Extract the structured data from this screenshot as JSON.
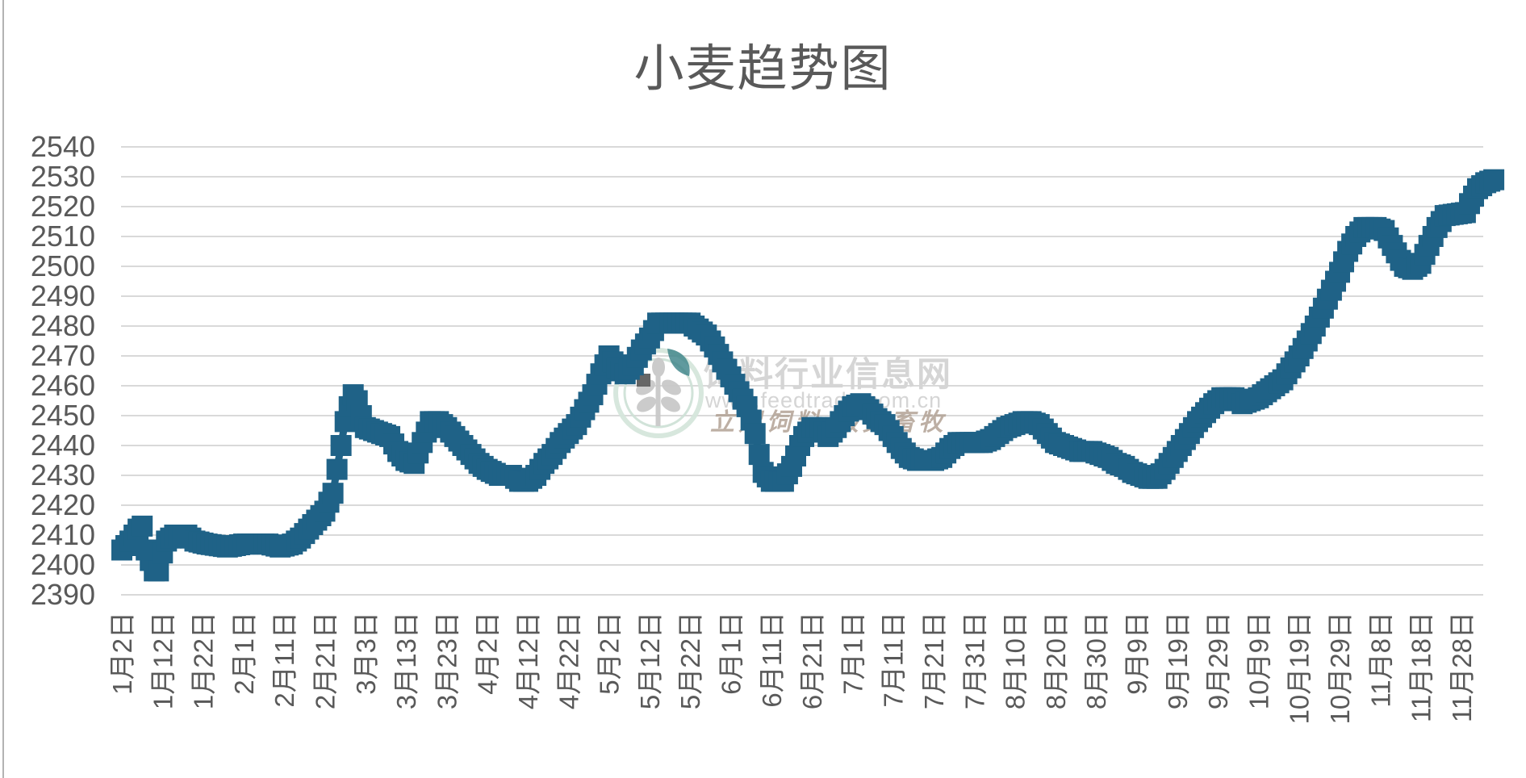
{
  "title": "小麦趋势图",
  "watermark": {
    "site_name": "饲料行业信息网",
    "site_url": "www.feedtrade.com.cn",
    "slogan": "立足饲料  服务畜牧"
  },
  "colors": {
    "line": "#1F6287",
    "grid": "#D9D9D9",
    "axis_text": "#595959",
    "watermark_text": "#D5D5D5",
    "watermark_slogan": "#B2A295",
    "logo_ring": "#D5E6DC",
    "logo_leaf": "#3A8186",
    "logo_wheat": "#C9C9C9",
    "logo_grain": "#5E5E5E"
  },
  "chart_data": {
    "type": "line",
    "title": "小麦趋势图",
    "xlabel": "",
    "ylabel": "",
    "legend": "none",
    "grid": "horizontal",
    "ylim": [
      2390,
      2540
    ],
    "y_tick_step": 10,
    "y_tick_labels": [
      "2540",
      "2530",
      "2520",
      "2510",
      "2500",
      "2490",
      "2480",
      "2470",
      "2460",
      "2450",
      "2440",
      "2430",
      "2420",
      "2410",
      "2400",
      "2390"
    ],
    "x_tick_interval_days": 10,
    "x_tick_labels": [
      "1月2日",
      "1月12日",
      "1月22日",
      "2月1日",
      "2月11日",
      "2月21日",
      "3月3日",
      "3月13日",
      "3月23日",
      "4月2日",
      "4月12日",
      "4月22日",
      "5月2日",
      "5月12日",
      "5月22日",
      "6月1日",
      "6月11日",
      "6月21日",
      "7月1日",
      "7月11日",
      "7月21日",
      "7月31日",
      "8月10日",
      "8月20日",
      "8月30日",
      "9月9日",
      "9月19日",
      "9月29日",
      "10月9日",
      "10月19日",
      "10月29日",
      "11月8日",
      "11月18日",
      "11月28日"
    ],
    "series": [
      {
        "name": "wheat_price",
        "color": "#1F6287",
        "start_date_label": "1月2日",
        "points_day_value": [
          [
            0,
            2405
          ],
          [
            2,
            2408
          ],
          [
            4,
            2412
          ],
          [
            5,
            2413
          ],
          [
            6,
            2405
          ],
          [
            8,
            2398
          ],
          [
            9,
            2398
          ],
          [
            10,
            2404
          ],
          [
            11,
            2408
          ],
          [
            13,
            2410
          ],
          [
            16,
            2410
          ],
          [
            18,
            2408
          ],
          [
            21,
            2407
          ],
          [
            26,
            2406
          ],
          [
            30,
            2407
          ],
          [
            36,
            2407
          ],
          [
            39,
            2406
          ],
          [
            42,
            2407
          ],
          [
            44,
            2409
          ],
          [
            46,
            2412
          ],
          [
            48,
            2415
          ],
          [
            50,
            2418
          ],
          [
            52,
            2424
          ],
          [
            53,
            2432
          ],
          [
            54,
            2440
          ],
          [
            55,
            2448
          ],
          [
            56,
            2453
          ],
          [
            57,
            2457
          ],
          [
            58,
            2455
          ],
          [
            59,
            2450
          ],
          [
            60,
            2446
          ],
          [
            62,
            2445
          ],
          [
            64,
            2444
          ],
          [
            66,
            2443
          ],
          [
            68,
            2438
          ],
          [
            70,
            2435
          ],
          [
            72,
            2434
          ],
          [
            74,
            2441
          ],
          [
            76,
            2448
          ],
          [
            78,
            2448
          ],
          [
            80,
            2446
          ],
          [
            82,
            2443
          ],
          [
            84,
            2440
          ],
          [
            86,
            2437
          ],
          [
            88,
            2434
          ],
          [
            90,
            2432
          ],
          [
            93,
            2430
          ],
          [
            96,
            2430
          ],
          [
            98,
            2428
          ],
          [
            100,
            2428
          ],
          [
            102,
            2430
          ],
          [
            104,
            2434
          ],
          [
            106,
            2437
          ],
          [
            108,
            2441
          ],
          [
            110,
            2444
          ],
          [
            112,
            2447
          ],
          [
            114,
            2452
          ],
          [
            116,
            2457
          ],
          [
            118,
            2464
          ],
          [
            120,
            2470
          ],
          [
            122,
            2466
          ],
          [
            124,
            2464
          ],
          [
            126,
            2467
          ],
          [
            128,
            2472
          ],
          [
            130,
            2476
          ],
          [
            132,
            2481
          ],
          [
            140,
            2481
          ],
          [
            142,
            2479
          ],
          [
            144,
            2477
          ],
          [
            146,
            2473
          ],
          [
            148,
            2468
          ],
          [
            150,
            2463
          ],
          [
            152,
            2458
          ],
          [
            154,
            2453
          ],
          [
            156,
            2444
          ],
          [
            157,
            2437
          ],
          [
            158,
            2431
          ],
          [
            160,
            2428
          ],
          [
            163,
            2428
          ],
          [
            165,
            2433
          ],
          [
            167,
            2440
          ],
          [
            168,
            2443
          ],
          [
            170,
            2446
          ],
          [
            172,
            2446
          ],
          [
            174,
            2443
          ],
          [
            176,
            2446
          ],
          [
            178,
            2450
          ],
          [
            180,
            2453
          ],
          [
            182,
            2454
          ],
          [
            184,
            2452
          ],
          [
            186,
            2449
          ],
          [
            188,
            2447
          ],
          [
            190,
            2443
          ],
          [
            192,
            2439
          ],
          [
            194,
            2436
          ],
          [
            196,
            2435
          ],
          [
            200,
            2435
          ],
          [
            202,
            2436
          ],
          [
            204,
            2439
          ],
          [
            206,
            2441
          ],
          [
            212,
            2441
          ],
          [
            214,
            2442
          ],
          [
            216,
            2444
          ],
          [
            218,
            2446
          ],
          [
            220,
            2447
          ],
          [
            222,
            2448
          ],
          [
            224,
            2448
          ],
          [
            226,
            2447
          ],
          [
            228,
            2444
          ],
          [
            230,
            2441
          ],
          [
            232,
            2440
          ],
          [
            234,
            2439
          ],
          [
            236,
            2438
          ],
          [
            239,
            2438
          ],
          [
            241,
            2437
          ],
          [
            243,
            2436
          ],
          [
            245,
            2434
          ],
          [
            247,
            2433
          ],
          [
            249,
            2431
          ],
          [
            251,
            2430
          ],
          [
            253,
            2429
          ],
          [
            255,
            2429
          ],
          [
            257,
            2432
          ],
          [
            259,
            2436
          ],
          [
            261,
            2440
          ],
          [
            263,
            2444
          ],
          [
            265,
            2448
          ],
          [
            267,
            2451
          ],
          [
            269,
            2454
          ],
          [
            271,
            2456
          ],
          [
            274,
            2456
          ],
          [
            276,
            2454
          ],
          [
            278,
            2455
          ],
          [
            280,
            2456
          ],
          [
            282,
            2458
          ],
          [
            284,
            2460
          ],
          [
            286,
            2462
          ],
          [
            288,
            2466
          ],
          [
            290,
            2470
          ],
          [
            292,
            2475
          ],
          [
            294,
            2480
          ],
          [
            296,
            2486
          ],
          [
            298,
            2492
          ],
          [
            300,
            2498
          ],
          [
            302,
            2505
          ],
          [
            304,
            2510
          ],
          [
            306,
            2513
          ],
          [
            309,
            2513
          ],
          [
            311,
            2512
          ],
          [
            313,
            2507
          ],
          [
            315,
            2502
          ],
          [
            316,
            2500
          ],
          [
            318,
            2499
          ],
          [
            320,
            2501
          ],
          [
            322,
            2507
          ],
          [
            324,
            2513
          ],
          [
            326,
            2517
          ],
          [
            331,
            2518
          ],
          [
            332,
            2521
          ],
          [
            334,
            2526
          ],
          [
            336,
            2528
          ],
          [
            338,
            2529
          ]
        ]
      }
    ]
  }
}
